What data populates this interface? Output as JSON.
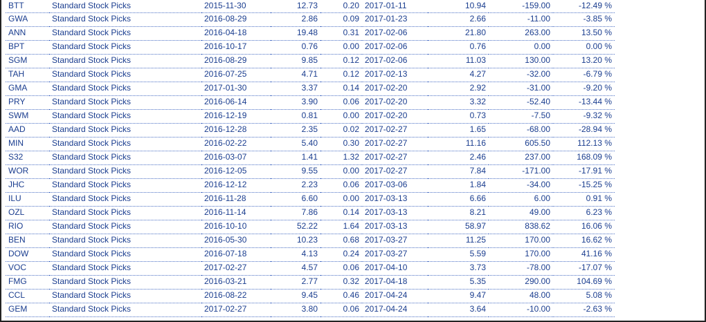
{
  "rows": [
    {
      "code": "BTT",
      "portfolio": "Standard Stock Picks",
      "buy_date": "2015-11-30",
      "buy_price": "12.73",
      "dividend": "0.20",
      "sell_date": "2017-01-11",
      "sell_price": "10.94",
      "gain": "-159.00",
      "pct": "-12.49 %"
    },
    {
      "code": "GWA",
      "portfolio": "Standard Stock Picks",
      "buy_date": "2016-08-29",
      "buy_price": "2.86",
      "dividend": "0.09",
      "sell_date": "2017-01-23",
      "sell_price": "2.66",
      "gain": "-11.00",
      "pct": "-3.85 %"
    },
    {
      "code": "ANN",
      "portfolio": "Standard Stock Picks",
      "buy_date": "2016-04-18",
      "buy_price": "19.48",
      "dividend": "0.31",
      "sell_date": "2017-02-06",
      "sell_price": "21.80",
      "gain": "263.00",
      "pct": "13.50 %"
    },
    {
      "code": "BPT",
      "portfolio": "Standard Stock Picks",
      "buy_date": "2016-10-17",
      "buy_price": "0.76",
      "dividend": "0.00",
      "sell_date": "2017-02-06",
      "sell_price": "0.76",
      "gain": "0.00",
      "pct": "0.00 %"
    },
    {
      "code": "SGM",
      "portfolio": "Standard Stock Picks",
      "buy_date": "2016-08-29",
      "buy_price": "9.85",
      "dividend": "0.12",
      "sell_date": "2017-02-06",
      "sell_price": "11.03",
      "gain": "130.00",
      "pct": "13.20 %"
    },
    {
      "code": "TAH",
      "portfolio": "Standard Stock Picks",
      "buy_date": "2016-07-25",
      "buy_price": "4.71",
      "dividend": "0.12",
      "sell_date": "2017-02-13",
      "sell_price": "4.27",
      "gain": "-32.00",
      "pct": "-6.79 %"
    },
    {
      "code": "GMA",
      "portfolio": "Standard Stock Picks",
      "buy_date": "2017-01-30",
      "buy_price": "3.37",
      "dividend": "0.14",
      "sell_date": "2017-02-20",
      "sell_price": "2.92",
      "gain": "-31.00",
      "pct": "-9.20 %"
    },
    {
      "code": "PRY",
      "portfolio": "Standard Stock Picks",
      "buy_date": "2016-06-14",
      "buy_price": "3.90",
      "dividend": "0.06",
      "sell_date": "2017-02-20",
      "sell_price": "3.32",
      "gain": "-52.40",
      "pct": "-13.44 %"
    },
    {
      "code": "SWM",
      "portfolio": "Standard Stock Picks",
      "buy_date": "2016-12-19",
      "buy_price": "0.81",
      "dividend": "0.00",
      "sell_date": "2017-02-20",
      "sell_price": "0.73",
      "gain": "-7.50",
      "pct": "-9.32 %"
    },
    {
      "code": "AAD",
      "portfolio": "Standard Stock Picks",
      "buy_date": "2016-12-28",
      "buy_price": "2.35",
      "dividend": "0.02",
      "sell_date": "2017-02-27",
      "sell_price": "1.65",
      "gain": "-68.00",
      "pct": "-28.94 %"
    },
    {
      "code": "MIN",
      "portfolio": "Standard Stock Picks",
      "buy_date": "2016-02-22",
      "buy_price": "5.40",
      "dividend": "0.30",
      "sell_date": "2017-02-27",
      "sell_price": "11.16",
      "gain": "605.50",
      "pct": "112.13 %"
    },
    {
      "code": "S32",
      "portfolio": "Standard Stock Picks",
      "buy_date": "2016-03-07",
      "buy_price": "1.41",
      "dividend": "1.32",
      "sell_date": "2017-02-27",
      "sell_price": "2.46",
      "gain": "237.00",
      "pct": "168.09 %"
    },
    {
      "code": "WOR",
      "portfolio": "Standard Stock Picks",
      "buy_date": "2016-12-05",
      "buy_price": "9.55",
      "dividend": "0.00",
      "sell_date": "2017-02-27",
      "sell_price": "7.84",
      "gain": "-171.00",
      "pct": "-17.91 %"
    },
    {
      "code": "JHC",
      "portfolio": "Standard Stock Picks",
      "buy_date": "2016-12-12",
      "buy_price": "2.23",
      "dividend": "0.06",
      "sell_date": "2017-03-06",
      "sell_price": "1.84",
      "gain": "-34.00",
      "pct": "-15.25 %"
    },
    {
      "code": "ILU",
      "portfolio": "Standard Stock Picks",
      "buy_date": "2016-11-28",
      "buy_price": "6.60",
      "dividend": "0.00",
      "sell_date": "2017-03-13",
      "sell_price": "6.66",
      "gain": "6.00",
      "pct": "0.91 %"
    },
    {
      "code": "OZL",
      "portfolio": "Standard Stock Picks",
      "buy_date": "2016-11-14",
      "buy_price": "7.86",
      "dividend": "0.14",
      "sell_date": "2017-03-13",
      "sell_price": "8.21",
      "gain": "49.00",
      "pct": "6.23 %"
    },
    {
      "code": "RIO",
      "portfolio": "Standard Stock Picks",
      "buy_date": "2016-10-10",
      "buy_price": "52.22",
      "dividend": "1.64",
      "sell_date": "2017-03-13",
      "sell_price": "58.97",
      "gain": "838.62",
      "pct": "16.06 %"
    },
    {
      "code": "BEN",
      "portfolio": "Standard Stock Picks",
      "buy_date": "2016-05-30",
      "buy_price": "10.23",
      "dividend": "0.68",
      "sell_date": "2017-03-27",
      "sell_price": "11.25",
      "gain": "170.00",
      "pct": "16.62 %"
    },
    {
      "code": "DOW",
      "portfolio": "Standard Stock Picks",
      "buy_date": "2016-07-18",
      "buy_price": "4.13",
      "dividend": "0.24",
      "sell_date": "2017-03-27",
      "sell_price": "5.59",
      "gain": "170.00",
      "pct": "41.16 %"
    },
    {
      "code": "VOC",
      "portfolio": "Standard Stock Picks",
      "buy_date": "2017-02-27",
      "buy_price": "4.57",
      "dividend": "0.06",
      "sell_date": "2017-04-10",
      "sell_price": "3.73",
      "gain": "-78.00",
      "pct": "-17.07 %"
    },
    {
      "code": "FMG",
      "portfolio": "Standard Stock Picks",
      "buy_date": "2016-03-21",
      "buy_price": "2.77",
      "dividend": "0.32",
      "sell_date": "2017-04-18",
      "sell_price": "5.35",
      "gain": "290.00",
      "pct": "104.69 %"
    },
    {
      "code": "CCL",
      "portfolio": "Standard Stock Picks",
      "buy_date": "2016-08-22",
      "buy_price": "9.45",
      "dividend": "0.46",
      "sell_date": "2017-04-24",
      "sell_price": "9.47",
      "gain": "48.00",
      "pct": "5.08 %"
    },
    {
      "code": "GEM",
      "portfolio": "Standard Stock Picks",
      "buy_date": "2017-02-27",
      "buy_price": "3.80",
      "dividend": "0.06",
      "sell_date": "2017-04-24",
      "sell_price": "3.64",
      "gain": "-10.00",
      "pct": "-2.63 %"
    }
  ],
  "colors": {
    "text": "#1a3d8f",
    "divider": "#4a6fc4",
    "frame": "#222222"
  }
}
